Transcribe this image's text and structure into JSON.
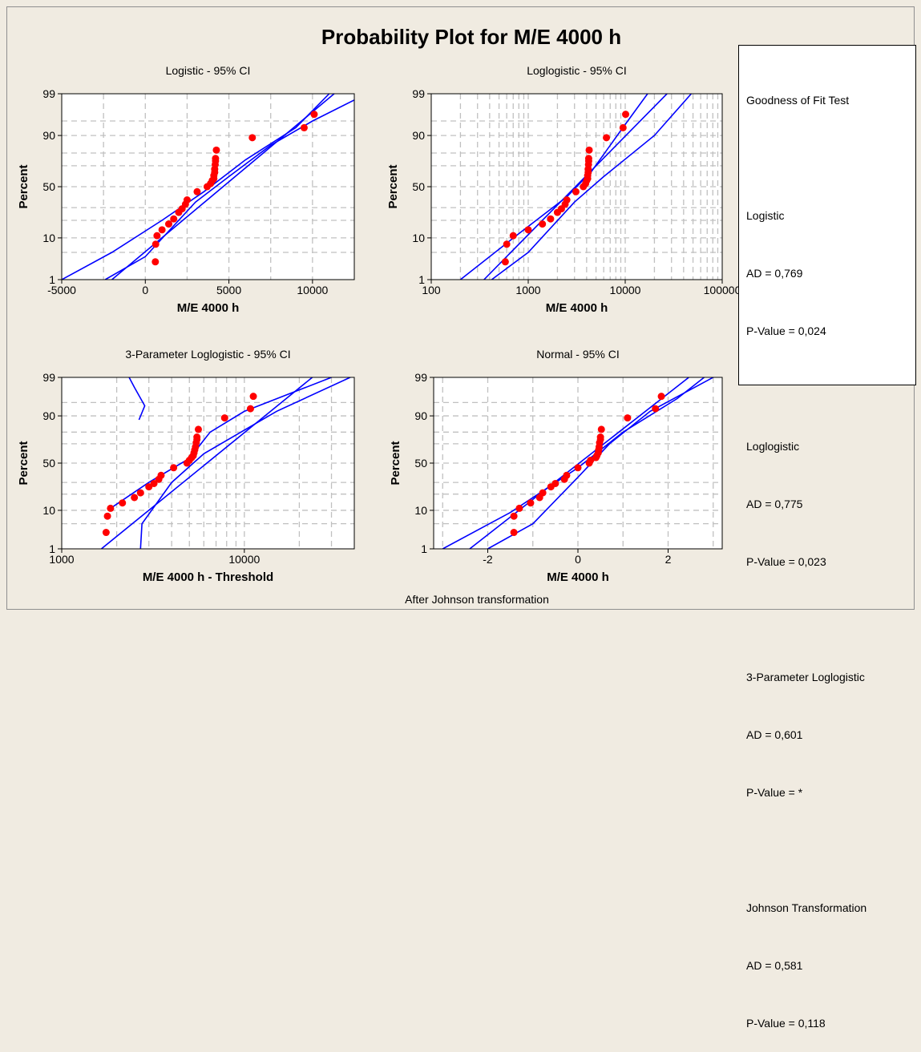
{
  "page_title": "Probability Plot for M/E 4000 h",
  "footer_note": "After Johnson transformation",
  "colors": {
    "background": "#f0ebe1",
    "plot_bg": "#ffffff",
    "points": "#ff0000",
    "lines": "#0000ff",
    "grid": "#c0c0c0"
  },
  "goodness_of_fit": {
    "title": "Goodness of Fit Test",
    "entries": [
      {
        "name": "Logistic",
        "ad": "AD = 0,769",
        "p": "P-Value = 0,024"
      },
      {
        "name": "Loglogistic",
        "ad": "AD = 0,775",
        "p": "P-Value = 0,023"
      },
      {
        "name": "3-Parameter Loglogistic",
        "ad": "AD = 0,601",
        "p": "P-Value = *"
      },
      {
        "name": "Johnson Transformation",
        "ad": "AD = 0,581",
        "p": "P-Value = 0,118"
      }
    ]
  },
  "chart_data": [
    {
      "type": "scatter",
      "title": "Logistic - 95% CI",
      "xlabel": "M/E 4000 h",
      "ylabel": "Percent",
      "x_scale": "linear",
      "xlim": [
        -5000,
        12500
      ],
      "x_ticks": [
        -5000,
        0,
        5000,
        10000
      ],
      "x_tick_labels": [
        "-5000",
        "0",
        "5000",
        "10000"
      ],
      "y_scale": "probability",
      "ylim": [
        1,
        99
      ],
      "y_ticks": [
        1,
        10,
        50,
        90,
        99
      ],
      "y_tick_labels": [
        "1",
        "10",
        "50",
        "90",
        "99"
      ],
      "grid": true,
      "points": [
        [
          600,
          3
        ],
        [
          620,
          7.5
        ],
        [
          700,
          11
        ],
        [
          1000,
          14
        ],
        [
          1400,
          17.5
        ],
        [
          1700,
          21
        ],
        [
          2000,
          26
        ],
        [
          2200,
          29
        ],
        [
          2400,
          33
        ],
        [
          2500,
          37
        ],
        [
          3100,
          45
        ],
        [
          3700,
          50
        ],
        [
          3900,
          53
        ],
        [
          4000,
          56
        ],
        [
          4100,
          58
        ],
        [
          4100,
          61
        ],
        [
          4150,
          64
        ],
        [
          4150,
          67
        ],
        [
          4180,
          71
        ],
        [
          4200,
          74
        ],
        [
          4200,
          76
        ],
        [
          4250,
          82
        ],
        [
          6400,
          89
        ],
        [
          9500,
          93
        ],
        [
          10100,
          96.5
        ]
      ],
      "fit_line": [
        [
          -2000,
          1
        ],
        [
          12500,
          99.7
        ]
      ],
      "ci_lower": [
        [
          -5000,
          1
        ],
        [
          -2000,
          5
        ],
        [
          1000,
          20
        ],
        [
          3500,
          45
        ],
        [
          6000,
          75
        ],
        [
          9000,
          93
        ],
        [
          11000,
          99
        ]
      ],
      "ci_upper": [
        [
          -2400,
          1
        ],
        [
          0,
          4
        ],
        [
          3000,
          35
        ],
        [
          5000,
          60
        ],
        [
          7500,
          85
        ],
        [
          10000,
          95
        ],
        [
          12500,
          98.5
        ]
      ]
    },
    {
      "type": "scatter",
      "title": "Loglogistic - 95% CI",
      "xlabel": "M/E 4000 h",
      "ylabel": "Percent",
      "x_scale": "log",
      "xlim": [
        100,
        100000
      ],
      "x_ticks": [
        100,
        1000,
        10000,
        100000
      ],
      "x_tick_labels": [
        "100",
        "1000",
        "10000",
        "100000"
      ],
      "y_scale": "probability",
      "ylim": [
        1,
        99
      ],
      "y_ticks": [
        1,
        10,
        50,
        90,
        99
      ],
      "y_tick_labels": [
        "1",
        "10",
        "50",
        "90",
        "99"
      ],
      "grid": true,
      "points": [
        [
          580,
          3
        ],
        [
          600,
          7.5
        ],
        [
          700,
          11
        ],
        [
          1000,
          14
        ],
        [
          1400,
          17.5
        ],
        [
          1700,
          21
        ],
        [
          2000,
          26
        ],
        [
          2200,
          29
        ],
        [
          2400,
          33
        ],
        [
          2500,
          37
        ],
        [
          3100,
          45
        ],
        [
          3700,
          50
        ],
        [
          3900,
          53
        ],
        [
          4000,
          56
        ],
        [
          4100,
          58
        ],
        [
          4100,
          61
        ],
        [
          4150,
          64
        ],
        [
          4150,
          67
        ],
        [
          4180,
          71
        ],
        [
          4200,
          74
        ],
        [
          4200,
          76
        ],
        [
          4250,
          82
        ],
        [
          6400,
          89
        ],
        [
          9500,
          93
        ],
        [
          10100,
          96.5
        ]
      ],
      "fit_line": [
        [
          350,
          1
        ],
        [
          40000,
          99.7
        ]
      ],
      "ci_lower": [
        [
          200,
          1
        ],
        [
          800,
          12
        ],
        [
          2500,
          40
        ],
        [
          4500,
          65
        ],
        [
          9000,
          92
        ],
        [
          17000,
          99
        ]
      ],
      "ci_upper": [
        [
          420,
          1
        ],
        [
          1000,
          5
        ],
        [
          3000,
          35
        ],
        [
          6000,
          60
        ],
        [
          20000,
          90
        ],
        [
          48000,
          99
        ]
      ]
    },
    {
      "type": "scatter",
      "title": "3-Parameter Loglogistic - 95% CI",
      "xlabel": "M/E 4000 h - Threshold",
      "ylabel": "Percent",
      "x_scale": "log",
      "xlim": [
        1000,
        40000
      ],
      "x_ticks": [
        1000,
        10000
      ],
      "x_tick_labels": [
        "1000",
        "10000"
      ],
      "y_scale": "probability",
      "ylim": [
        1,
        99
      ],
      "y_ticks": [
        1,
        10,
        50,
        90,
        99
      ],
      "y_tick_labels": [
        "1",
        "10",
        "50",
        "90",
        "99"
      ],
      "grid": true,
      "points": [
        [
          1750,
          3
        ],
        [
          1780,
          7.5
        ],
        [
          1850,
          11
        ],
        [
          2150,
          14
        ],
        [
          2500,
          17.5
        ],
        [
          2700,
          21
        ],
        [
          3000,
          26
        ],
        [
          3200,
          29
        ],
        [
          3400,
          33
        ],
        [
          3500,
          37
        ],
        [
          4100,
          45
        ],
        [
          4850,
          50
        ],
        [
          5000,
          53
        ],
        [
          5150,
          56
        ],
        [
          5250,
          58
        ],
        [
          5300,
          61
        ],
        [
          5350,
          64
        ],
        [
          5400,
          67
        ],
        [
          5450,
          71
        ],
        [
          5500,
          74
        ],
        [
          5500,
          76
        ],
        [
          5600,
          82
        ],
        [
          7800,
          89
        ],
        [
          10800,
          93
        ],
        [
          11200,
          96.5
        ]
      ],
      "fit_line": [
        [
          1650,
          1
        ],
        [
          30000,
          99.7
        ]
      ],
      "ci_lower": [
        [
          1850,
          11
        ],
        [
          3000,
          30
        ],
        [
          5000,
          55
        ],
        [
          6500,
          80
        ],
        [
          10000,
          92
        ],
        [
          30000,
          99
        ]
      ],
      "ci_upper": [
        [
          2700,
          1
        ],
        [
          2750,
          5
        ],
        [
          4000,
          30
        ],
        [
          6000,
          60
        ],
        [
          15000,
          92
        ],
        [
          38000,
          99
        ]
      ],
      "ci_upper_bulge": [
        [
          2650,
          88
        ],
        [
          2850,
          94
        ],
        [
          2500,
          98
        ],
        [
          2200,
          99.5
        ]
      ]
    },
    {
      "type": "scatter",
      "title": "Normal - 95% CI",
      "xlabel": "M/E 4000 h",
      "ylabel": "Percent",
      "x_scale": "linear",
      "xlim": [
        -3.2,
        3.2
      ],
      "x_ticks": [
        -2,
        0,
        2
      ],
      "x_tick_labels": [
        "-2",
        "0",
        "2"
      ],
      "y_scale": "probability",
      "ylim": [
        1,
        99
      ],
      "y_ticks": [
        1,
        10,
        50,
        90,
        99
      ],
      "y_tick_labels": [
        "1",
        "10",
        "50",
        "90",
        "99"
      ],
      "grid": true,
      "points": [
        [
          -1.42,
          3
        ],
        [
          -1.42,
          7.5
        ],
        [
          -1.3,
          11
        ],
        [
          -1.05,
          14
        ],
        [
          -0.85,
          17.5
        ],
        [
          -0.78,
          21
        ],
        [
          -0.6,
          26
        ],
        [
          -0.5,
          29
        ],
        [
          -0.3,
          33
        ],
        [
          -0.25,
          37
        ],
        [
          0.0,
          45
        ],
        [
          0.25,
          50
        ],
        [
          0.28,
          53
        ],
        [
          0.4,
          56
        ],
        [
          0.42,
          58
        ],
        [
          0.45,
          61
        ],
        [
          0.46,
          64
        ],
        [
          0.47,
          67
        ],
        [
          0.48,
          71
        ],
        [
          0.5,
          74
        ],
        [
          0.5,
          76
        ],
        [
          0.52,
          82
        ],
        [
          1.1,
          89
        ],
        [
          1.72,
          93
        ],
        [
          1.85,
          96.5
        ]
      ],
      "fit_line": [
        [
          -2.4,
          1
        ],
        [
          2.9,
          99.7
        ]
      ],
      "ci_lower": [
        [
          -3.0,
          1
        ],
        [
          -1.5,
          9
        ],
        [
          0,
          45
        ],
        [
          1.0,
          80
        ],
        [
          2.2,
          96
        ],
        [
          2.8,
          99
        ]
      ],
      "ci_upper": [
        [
          -2.0,
          1
        ],
        [
          -1.0,
          5
        ],
        [
          0,
          35
        ],
        [
          0.7,
          70
        ],
        [
          1.6,
          92
        ],
        [
          3.0,
          99
        ]
      ]
    }
  ]
}
